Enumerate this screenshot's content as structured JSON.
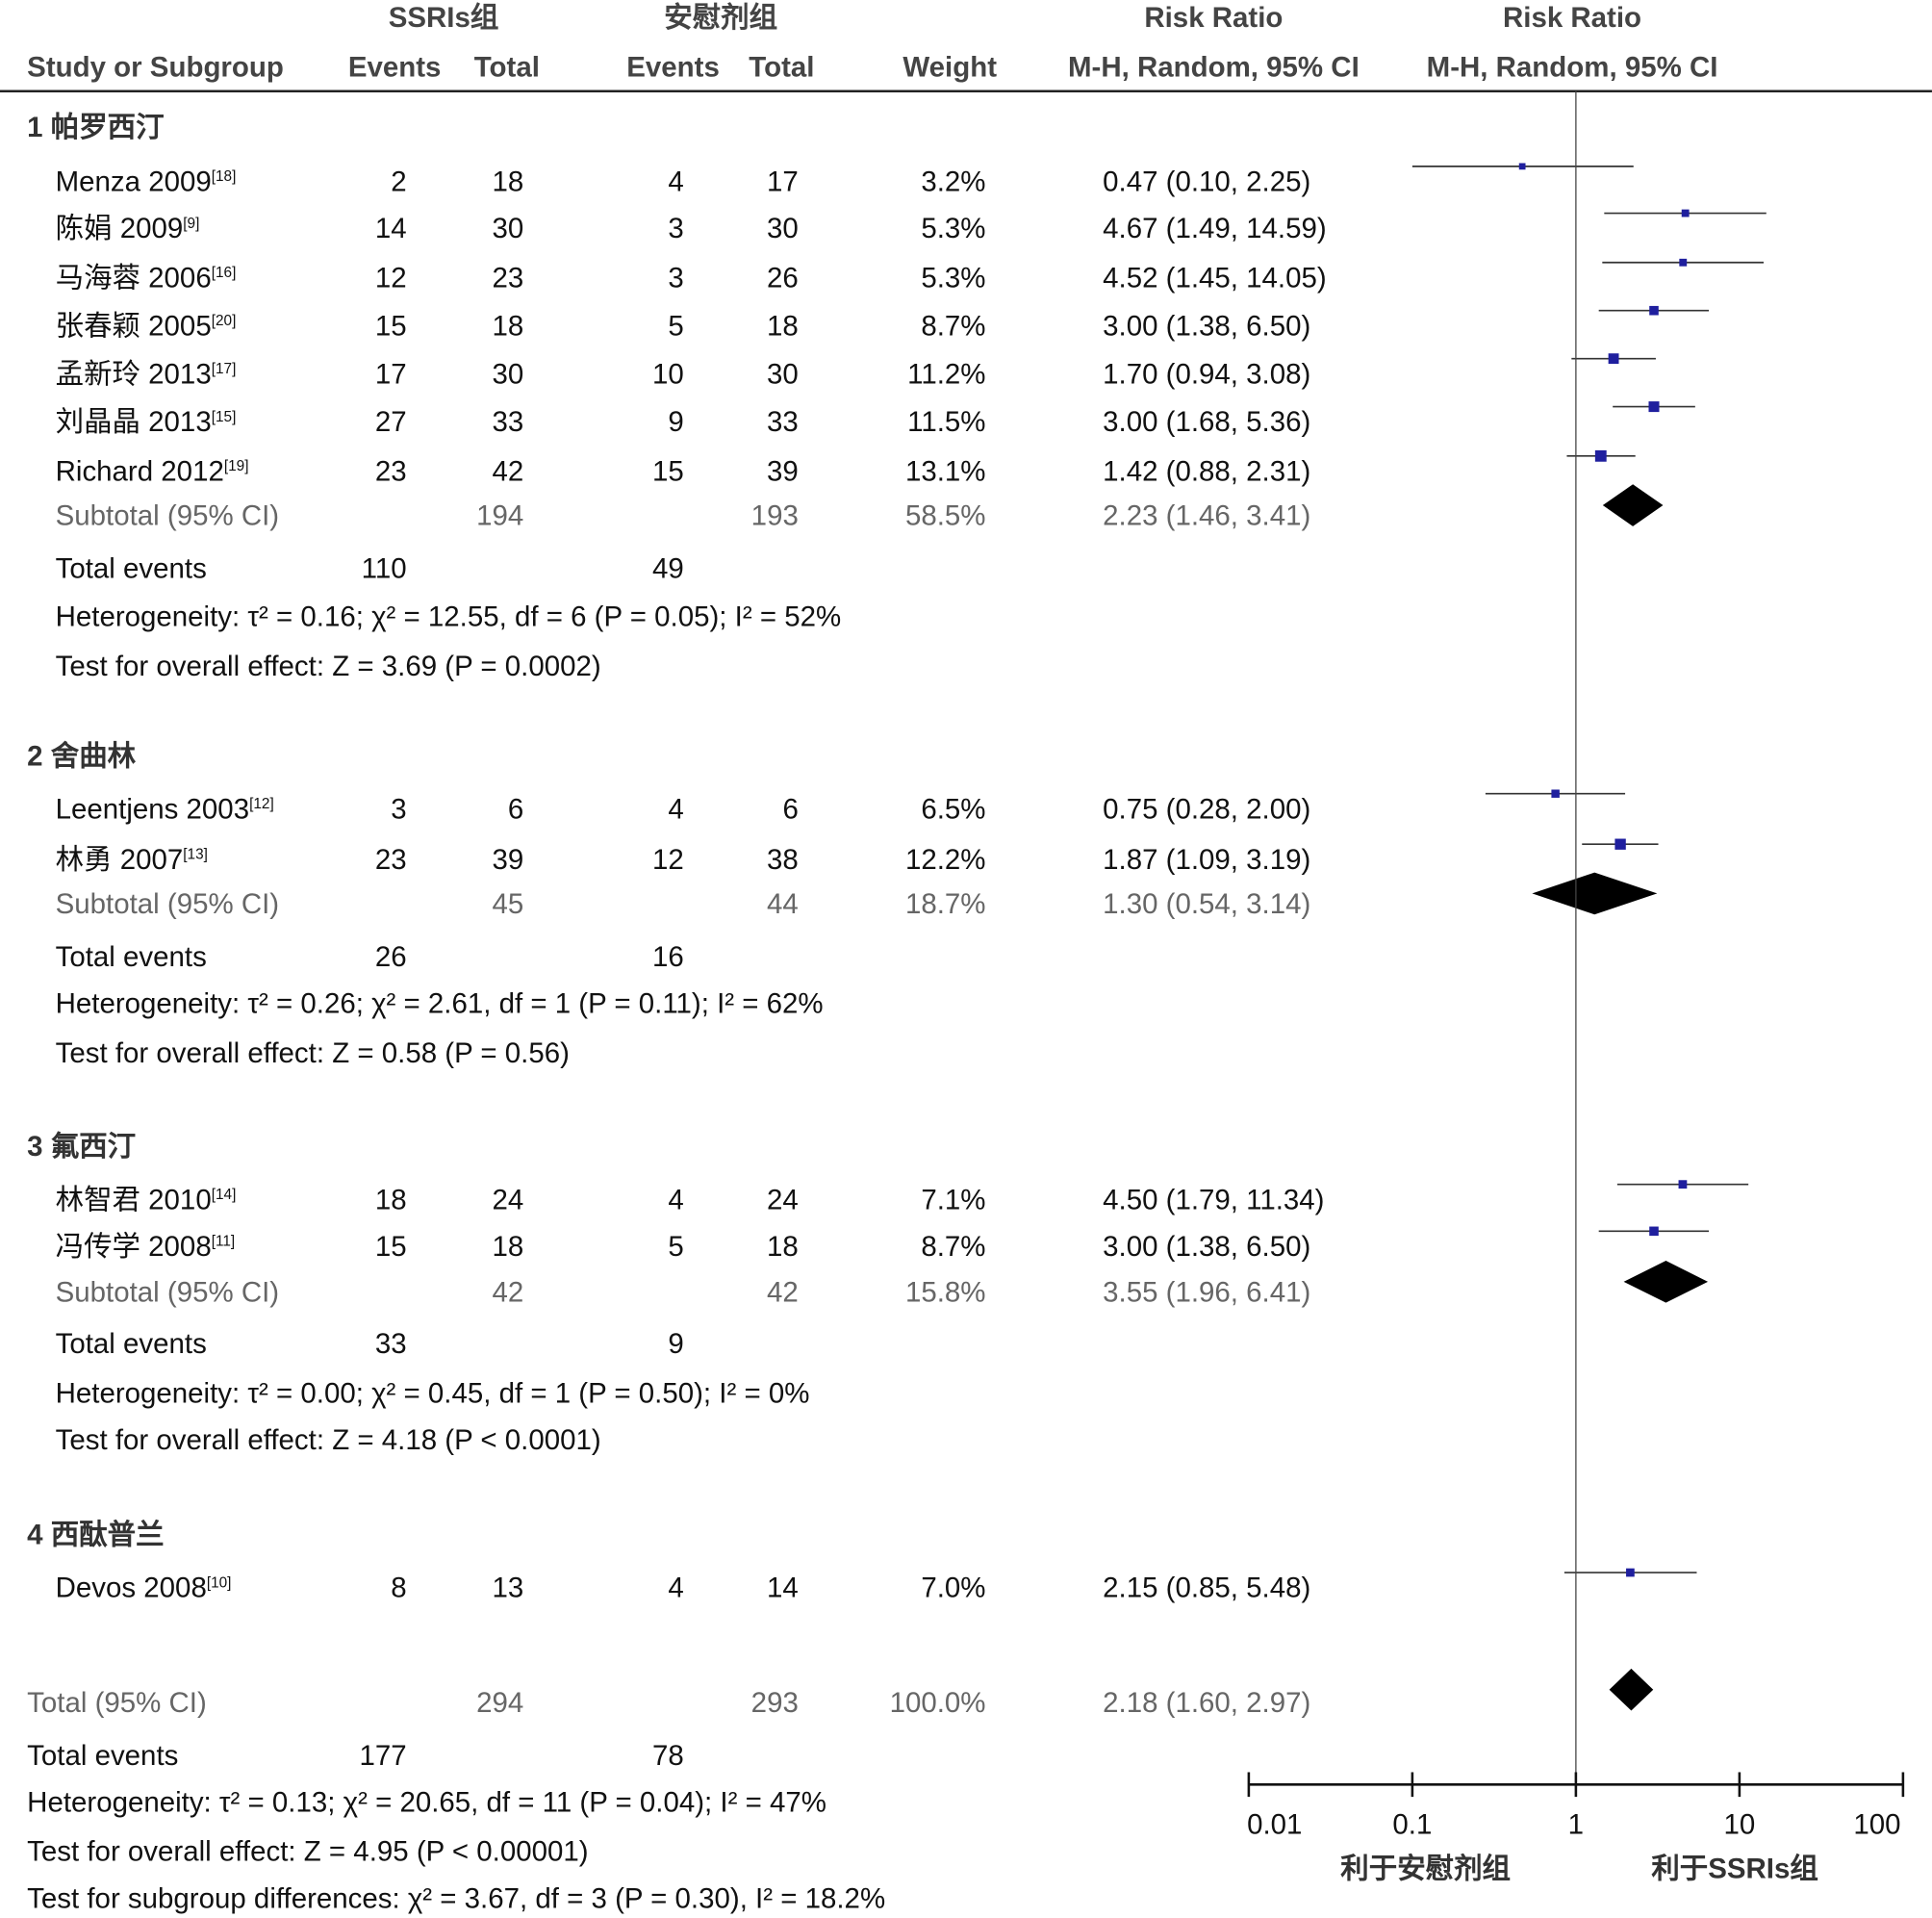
{
  "header": {
    "group1": "SSRIs组",
    "group2": "安慰剂组",
    "rr1": "Risk Ratio",
    "rr2": "Risk Ratio",
    "study": "Study or Subgroup",
    "events1": "Events",
    "total1": "Total",
    "events2": "Events",
    "total2": "Total",
    "weight": "Weight",
    "method1": "M-H, Random, 95% CI",
    "method2": "M-H, Random, 95% CI"
  },
  "groups": [
    {
      "heading": "1 帕罗西汀",
      "studies": [
        {
          "name": "Menza 2009",
          "ref": "[18]",
          "e1": "2",
          "t1": "18",
          "e2": "4",
          "t2": "17",
          "weight": "3.2%",
          "ci": "0.47 (0.10, 2.25)"
        },
        {
          "name": "陈娟 2009",
          "ref": "[9]",
          "e1": "14",
          "t1": "30",
          "e2": "3",
          "t2": "30",
          "weight": "5.3%",
          "ci": "4.67 (1.49, 14.59)"
        },
        {
          "name": "马海蓉 2006",
          "ref": "[16]",
          "e1": "12",
          "t1": "23",
          "e2": "3",
          "t2": "26",
          "weight": "5.3%",
          "ci": "4.52 (1.45, 14.05)"
        },
        {
          "name": "张春颖 2005",
          "ref": "[20]",
          "e1": "15",
          "t1": "18",
          "e2": "5",
          "t2": "18",
          "weight": "8.7%",
          "ci": "3.00 (1.38, 6.50)"
        },
        {
          "name": "孟新玲 2013",
          "ref": "[17]",
          "e1": "17",
          "t1": "30",
          "e2": "10",
          "t2": "30",
          "weight": "11.2%",
          "ci": "1.70 (0.94, 3.08)"
        },
        {
          "name": "刘晶晶 2013",
          "ref": "[15]",
          "e1": "27",
          "t1": "33",
          "e2": "9",
          "t2": "33",
          "weight": "11.5%",
          "ci": "3.00 (1.68, 5.36)"
        },
        {
          "name": "Richard 2012",
          "ref": "[19]",
          "e1": "23",
          "t1": "42",
          "e2": "15",
          "t2": "39",
          "weight": "13.1%",
          "ci": "1.42 (0.88, 2.31)"
        }
      ],
      "subtotal": {
        "label": "Subtotal (95% CI)",
        "t1": "194",
        "t2": "193",
        "weight": "58.5%",
        "ci": "2.23 (1.46, 3.41)"
      },
      "total_events": {
        "label": "Total events",
        "e1": "110",
        "e2": "49"
      },
      "heterogeneity": "Heterogeneity: τ² = 0.16; χ² = 12.55, df = 6 (P = 0.05); I² = 52%",
      "overall": "Test for overall effect: Z = 3.69 (P = 0.0002)"
    },
    {
      "heading": "2 舍曲林",
      "studies": [
        {
          "name": "Leentjens 2003",
          "ref": "[12]",
          "e1": "3",
          "t1": "6",
          "e2": "4",
          "t2": "6",
          "weight": "6.5%",
          "ci": "0.75 (0.28, 2.00)"
        },
        {
          "name": "林勇 2007",
          "ref": "[13]",
          "e1": "23",
          "t1": "39",
          "e2": "12",
          "t2": "38",
          "weight": "12.2%",
          "ci": "1.87 (1.09, 3.19)"
        }
      ],
      "subtotal": {
        "label": "Subtotal (95% CI)",
        "t1": "45",
        "t2": "44",
        "weight": "18.7%",
        "ci": "1.30 (0.54, 3.14)"
      },
      "total_events": {
        "label": "Total events",
        "e1": "26",
        "e2": "16"
      },
      "heterogeneity": "Heterogeneity: τ² = 0.26; χ² = 2.61, df = 1 (P = 0.11); I² = 62%",
      "overall": "Test for overall effect: Z = 0.58 (P = 0.56)"
    },
    {
      "heading": "3 氟西汀",
      "studies": [
        {
          "name": "林智君 2010",
          "ref": "[14]",
          "e1": "18",
          "t1": "24",
          "e2": "4",
          "t2": "24",
          "weight": "7.1%",
          "ci": "4.50 (1.79, 11.34)"
        },
        {
          "name": "冯传学 2008",
          "ref": "[11]",
          "e1": "15",
          "t1": "18",
          "e2": "5",
          "t2": "18",
          "weight": "8.7%",
          "ci": "3.00 (1.38, 6.50)"
        }
      ],
      "subtotal": {
        "label": "Subtotal (95% CI)",
        "t1": "42",
        "t2": "42",
        "weight": "15.8%",
        "ci": "3.55 (1.96, 6.41)"
      },
      "total_events": {
        "label": "Total events",
        "e1": "33",
        "e2": "9"
      },
      "heterogeneity": "Heterogeneity: τ² = 0.00; χ² = 0.45, df = 1 (P = 0.50); I² = 0%",
      "overall": "Test for overall effect: Z = 4.18 (P < 0.0001)"
    },
    {
      "heading": "4 西酞普兰",
      "studies": [
        {
          "name": "Devos 2008",
          "ref": "[10]",
          "e1": "8",
          "t1": "13",
          "e2": "4",
          "t2": "14",
          "weight": "7.0%",
          "ci": "2.15 (0.85, 5.48)"
        }
      ]
    }
  ],
  "total": {
    "label": "Total (95% CI)",
    "t1": "294",
    "t2": "293",
    "weight": "100.0%",
    "ci": "2.18 (1.60, 2.97)",
    "events_label": "Total events",
    "e1": "177",
    "e2": "78",
    "heterogeneity": "Heterogeneity: τ² = 0.13; χ² = 20.65, df = 11 (P = 0.04); I² = 47%",
    "overall": "Test for overall effect: Z = 4.95 (P < 0.00001)",
    "subgroup": "Test for subgroup differences: χ² = 3.67, df = 3 (P = 0.30), I² = 18.2%"
  },
  "chart_data": {
    "type": "forest",
    "scale": "log",
    "xlim": [
      0.01,
      100
    ],
    "ticks": [
      "0.01",
      "0.1",
      "1",
      "10",
      "100"
    ],
    "xlabel_left": "利于安慰剂组",
    "xlabel_right": "利于SSRIs组",
    "square_color": "#1f1f9e",
    "diamond_color": "#000000",
    "studies": [
      {
        "rr": 0.47,
        "lo": 0.1,
        "hi": 2.25,
        "w": 3.2
      },
      {
        "rr": 4.67,
        "lo": 1.49,
        "hi": 14.59,
        "w": 5.3
      },
      {
        "rr": 4.52,
        "lo": 1.45,
        "hi": 14.05,
        "w": 5.3
      },
      {
        "rr": 3.0,
        "lo": 1.38,
        "hi": 6.5,
        "w": 8.7
      },
      {
        "rr": 1.7,
        "lo": 0.94,
        "hi": 3.08,
        "w": 11.2
      },
      {
        "rr": 3.0,
        "lo": 1.68,
        "hi": 5.36,
        "w": 11.5
      },
      {
        "rr": 1.42,
        "lo": 0.88,
        "hi": 2.31,
        "w": 13.1
      },
      {
        "rr": 0.75,
        "lo": 0.28,
        "hi": 2.0,
        "w": 6.5
      },
      {
        "rr": 1.87,
        "lo": 1.09,
        "hi": 3.19,
        "w": 12.2
      },
      {
        "rr": 4.5,
        "lo": 1.79,
        "hi": 11.34,
        "w": 7.1
      },
      {
        "rr": 3.0,
        "lo": 1.38,
        "hi": 6.5,
        "w": 8.7
      },
      {
        "rr": 2.15,
        "lo": 0.85,
        "hi": 5.48,
        "w": 7.0
      }
    ],
    "subtotals": [
      {
        "rr": 2.23,
        "lo": 1.46,
        "hi": 3.41
      },
      {
        "rr": 1.3,
        "lo": 0.54,
        "hi": 3.14
      },
      {
        "rr": 3.55,
        "lo": 1.96,
        "hi": 6.41
      }
    ],
    "overall": {
      "rr": 2.18,
      "lo": 1.6,
      "hi": 2.97
    }
  }
}
